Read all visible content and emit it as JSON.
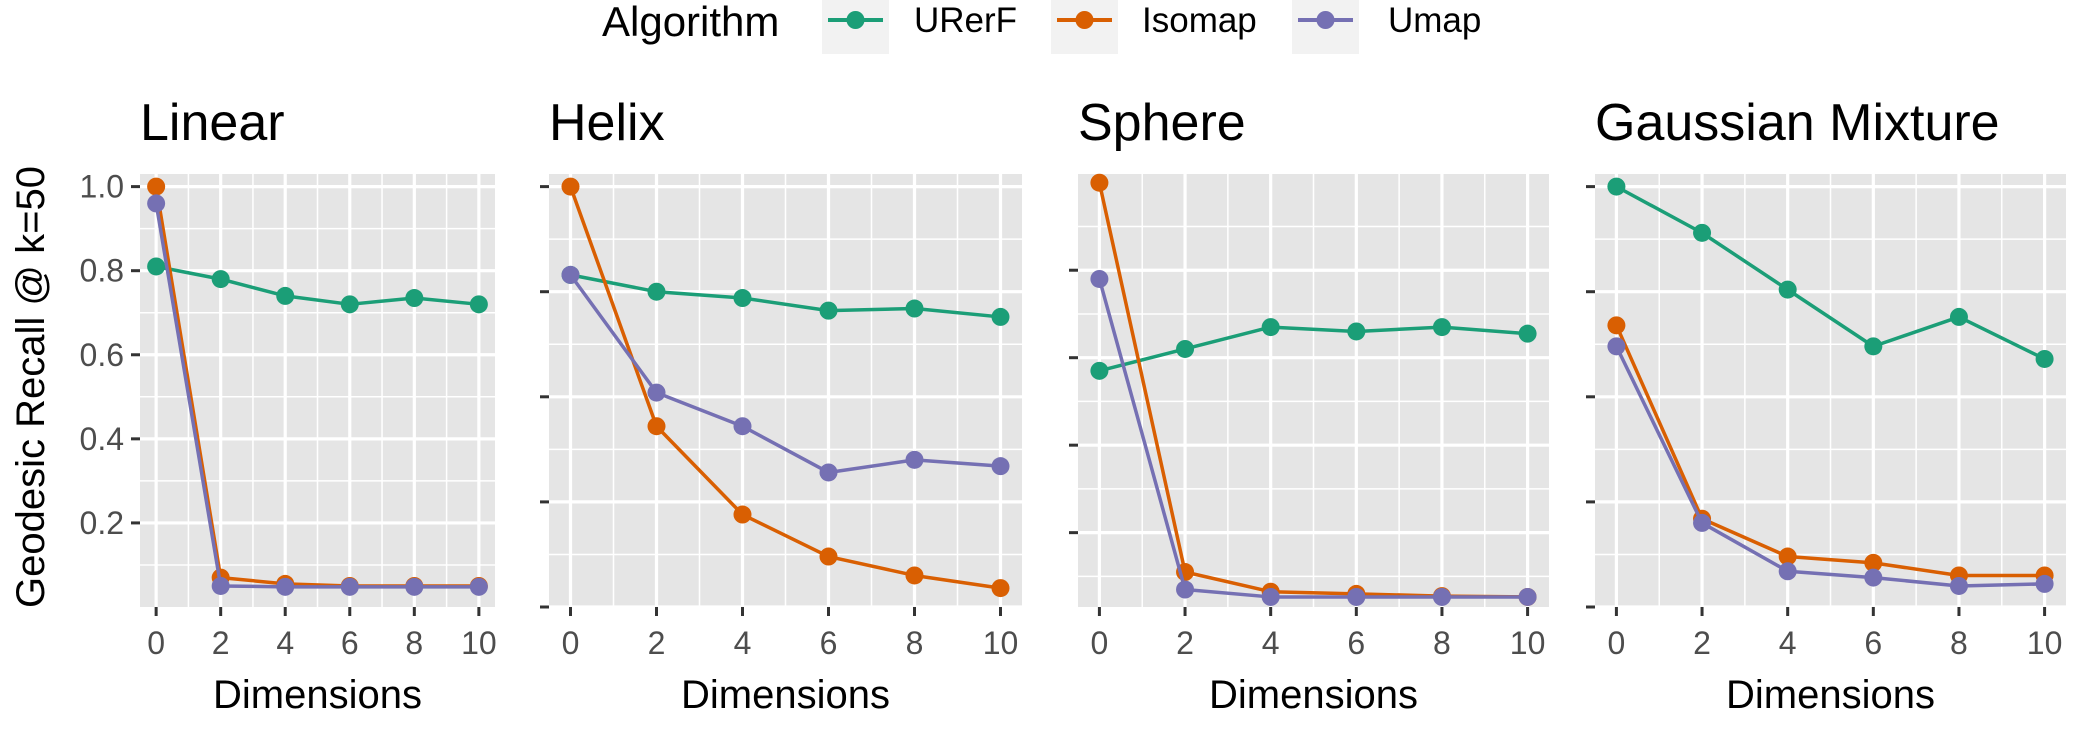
{
  "colors": {
    "urerf": "#1b9e77",
    "isomap": "#d95f02",
    "umap": "#7570b3",
    "panel_bg": "#e5e5e5",
    "grid": "#ffffff",
    "axis_text": "#4d4d4d",
    "text": "#000000",
    "legend_key_bg": "#f2f2f2"
  },
  "legend": {
    "title": "Algorithm",
    "entries": [
      "URerF",
      "Isomap",
      "Umap"
    ],
    "position": "top"
  },
  "y_axis_label": "Geodesic Recall @ k=50",
  "x_axis_label": "Dimensions",
  "chart_data": [
    {
      "type": "line",
      "title": "Linear",
      "xlabel": "Dimensions",
      "ylabel": "Geodesic Recall @ k=50",
      "x": [
        0,
        2,
        4,
        6,
        8,
        10
      ],
      "xlim": [
        -0.5,
        10.5
      ],
      "ylim": [
        0.0,
        1.03
      ],
      "xticks": [
        0,
        2,
        4,
        6,
        8,
        10
      ],
      "yticks": [
        0.2,
        0.4,
        0.6,
        0.8,
        1.0
      ],
      "ytick_labels": [
        "0.2",
        "0.4",
        "0.6",
        "0.8",
        "1.0"
      ],
      "grid": true,
      "series": [
        {
          "name": "URerF",
          "values": [
            0.81,
            0.78,
            0.74,
            0.72,
            0.735,
            0.72
          ]
        },
        {
          "name": "Isomap",
          "values": [
            1.0,
            0.07,
            0.055,
            0.05,
            0.05,
            0.05
          ]
        },
        {
          "name": "Umap",
          "values": [
            0.96,
            0.05,
            0.048,
            0.048,
            0.048,
            0.048
          ]
        }
      ]
    },
    {
      "type": "line",
      "title": "Helix",
      "xlabel": "Dimensions",
      "x": [
        0,
        2,
        4,
        6,
        8,
        10
      ],
      "xlim": [
        -0.5,
        10.5
      ],
      "ylim": [
        0.0,
        1.03
      ],
      "xticks": [
        0,
        2,
        4,
        6,
        8,
        10
      ],
      "yticks": [
        0.0,
        0.25,
        0.5,
        0.75,
        1.0
      ],
      "ytick_labels": [
        "",
        "",
        "",
        "",
        ""
      ],
      "grid": true,
      "series": [
        {
          "name": "URerF",
          "values": [
            0.79,
            0.75,
            0.735,
            0.705,
            0.71,
            0.69
          ]
        },
        {
          "name": "Isomap",
          "values": [
            1.0,
            0.43,
            0.22,
            0.12,
            0.075,
            0.045
          ]
        },
        {
          "name": "Umap",
          "values": [
            0.79,
            0.51,
            0.43,
            0.32,
            0.35,
            0.335
          ]
        }
      ]
    },
    {
      "type": "line",
      "title": "Sphere",
      "xlabel": "Dimensions",
      "x": [
        0,
        2,
        4,
        6,
        8,
        10
      ],
      "xlim": [
        -0.5,
        10.5
      ],
      "ylim": [
        0.03,
        1.02
      ],
      "xticks": [
        0,
        2,
        4,
        6,
        8,
        10
      ],
      "yticks": [
        0.2,
        0.4,
        0.6,
        0.8
      ],
      "ytick_labels": [
        "",
        "",
        "",
        ""
      ],
      "grid": true,
      "series": [
        {
          "name": "URerF",
          "values": [
            0.57,
            0.62,
            0.67,
            0.66,
            0.67,
            0.655
          ]
        },
        {
          "name": "Isomap",
          "values": [
            1.0,
            0.11,
            0.065,
            0.06,
            0.055,
            0.053
          ]
        },
        {
          "name": "Umap",
          "values": [
            0.78,
            0.07,
            0.053,
            0.053,
            0.053,
            0.053
          ]
        }
      ]
    },
    {
      "type": "line",
      "title": "Gaussian Mixture",
      "xlabel": "Dimensions",
      "x": [
        0,
        2,
        4,
        6,
        8,
        10
      ],
      "xlim": [
        -0.5,
        10.5
      ],
      "ylim": [
        0.0,
        1.03
      ],
      "xticks": [
        0,
        2,
        4,
        6,
        8,
        10
      ],
      "yticks": [
        0.0,
        0.25,
        0.5,
        0.75,
        1.0
      ],
      "ytick_labels": [
        "",
        "",
        "",
        "",
        ""
      ],
      "grid": true,
      "series": [
        {
          "name": "URerF",
          "values": [
            1.0,
            0.89,
            0.755,
            0.62,
            0.69,
            0.59
          ]
        },
        {
          "name": "Isomap",
          "values": [
            0.67,
            0.21,
            0.12,
            0.105,
            0.075,
            0.075
          ]
        },
        {
          "name": "Umap",
          "values": [
            0.62,
            0.2,
            0.085,
            0.07,
            0.05,
            0.055
          ]
        }
      ]
    }
  ]
}
